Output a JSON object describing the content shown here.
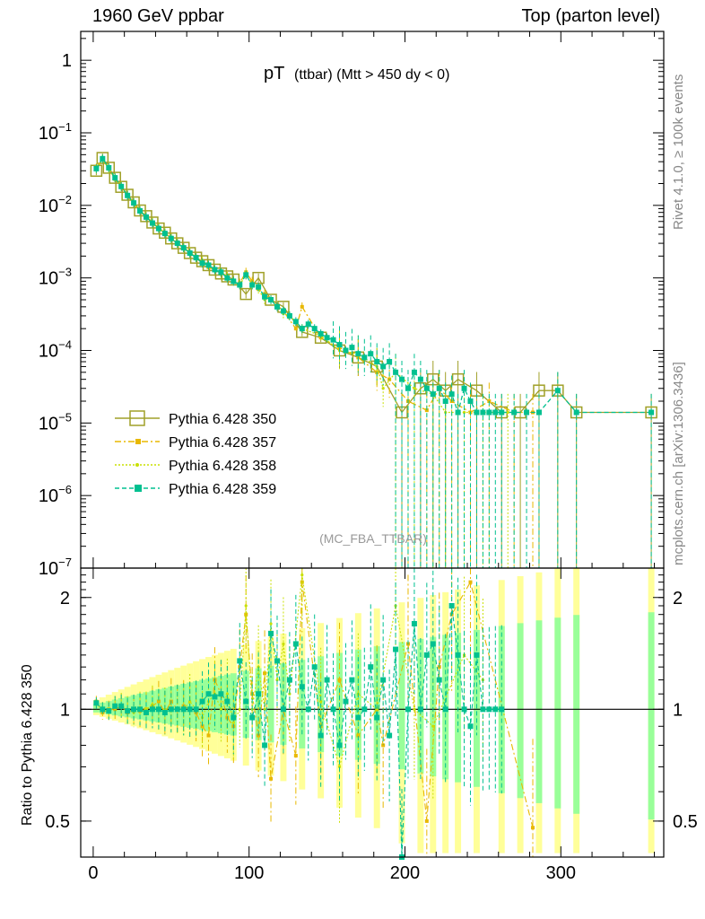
{
  "header": {
    "left": "1960 GeV ppbar",
    "right": "Top (parton level)"
  },
  "side_text": {
    "rivet": "Rivet 4.1.0, ≥ 100k events",
    "mcplots": "mcplots.cern.ch [arXiv:1306.3436]"
  },
  "chart_data": {
    "type": "line",
    "title_main": "pT",
    "title_sub": "(ttbar) (Mtt > 450 dy < 0)",
    "watermark": "(MC_FBA_TTBAR)",
    "xlim": [
      -8,
      366
    ],
    "xticks": [
      0,
      100,
      200,
      300
    ],
    "top_panel": {
      "yscale": "log",
      "ylim": [
        1e-07,
        2.5
      ],
      "yticks": [
        {
          "value": 1,
          "base": "1",
          "exp": ""
        },
        {
          "value": 0.1,
          "base": "10",
          "exp": "−1"
        },
        {
          "value": 0.01,
          "base": "10",
          "exp": "−2"
        },
        {
          "value": 0.001,
          "base": "10",
          "exp": "−3"
        },
        {
          "value": 0.0001,
          "base": "10",
          "exp": "−4"
        },
        {
          "value": 1e-05,
          "base": "10",
          "exp": "−5"
        },
        {
          "value": 1e-06,
          "base": "10",
          "exp": "−6"
        },
        {
          "value": 1e-07,
          "base": "10",
          "exp": "−7"
        }
      ]
    },
    "ratio_panel": {
      "ylabel": "Ratio to Pythia 6.428 350",
      "yscale": "log",
      "ylim": [
        0.4,
        2.4
      ],
      "yticks": [
        {
          "value": 0.5,
          "label": "0.5"
        },
        {
          "value": 1,
          "label": "1"
        },
        {
          "value": 2,
          "label": "2"
        }
      ],
      "band_inner_color": "#99ff99",
      "band_outer_color": "#ffff99"
    },
    "series": [
      {
        "name": "Pythia 6.428 350",
        "color": "#a0a028",
        "style": "solid",
        "marker": "open-square",
        "x": [
          2,
          6,
          10,
          14,
          18,
          22,
          26,
          30,
          34,
          38,
          42,
          46,
          50,
          54,
          58,
          62,
          66,
          70,
          74,
          78,
          82,
          86,
          90,
          98,
          106,
          114,
          122,
          134,
          146,
          158,
          170,
          182,
          198,
          210,
          218,
          226,
          234,
          246,
          262,
          274,
          286,
          298,
          310,
          358
        ],
        "y": [
          0.03,
          0.045,
          0.033,
          0.024,
          0.018,
          0.014,
          0.011,
          0.0085,
          0.0071,
          0.0058,
          0.0048,
          0.0042,
          0.0035,
          0.003,
          0.0026,
          0.0022,
          0.0019,
          0.0017,
          0.0015,
          0.0013,
          0.00115,
          0.00105,
          0.00095,
          0.0006,
          0.001,
          0.0005,
          0.0004,
          0.00018,
          0.00015,
          0.0001,
          8e-05,
          6e-05,
          1.4e-05,
          3e-05,
          4e-05,
          2.8e-05,
          4e-05,
          2.8e-05,
          1.4e-05,
          1.4e-05,
          2.8e-05,
          2.8e-05,
          1.4e-05,
          1.4e-05
        ]
      },
      {
        "name": "Pythia 6.428 357",
        "color": "#e8b800",
        "style": "dashdot",
        "marker": "small-square",
        "x": [
          2,
          6,
          10,
          14,
          18,
          22,
          26,
          30,
          34,
          38,
          42,
          46,
          50,
          54,
          58,
          62,
          66,
          70,
          74,
          78,
          82,
          86,
          90,
          94,
          98,
          102,
          106,
          110,
          114,
          122,
          130,
          134,
          146,
          158,
          170,
          182,
          190,
          202,
          214,
          222,
          230,
          242,
          254,
          270,
          282
        ],
        "y": [
          0.033,
          0.043,
          0.032,
          0.023,
          0.018,
          0.0136,
          0.0107,
          0.0082,
          0.0069,
          0.0058,
          0.0049,
          0.0041,
          0.0036,
          0.0031,
          0.0026,
          0.0022,
          0.0019,
          0.0016,
          0.0014,
          0.0013,
          0.0012,
          0.00105,
          0.0009,
          0.00085,
          0.0012,
          0.0009,
          0.0007,
          0.0006,
          0.0005,
          0.00035,
          0.0002,
          0.0004,
          0.00015,
          0.00011,
          8e-05,
          5e-05,
          4e-05,
          2e-05,
          1.5e-05,
          3e-05,
          2e-05,
          1.4e-05,
          2e-05,
          1.4e-05,
          1.4e-05
        ]
      },
      {
        "name": "Pythia 6.428 358",
        "color": "#c8e000",
        "style": "dotted",
        "marker": "dot",
        "x": [
          2,
          6,
          10,
          14,
          18,
          22,
          26,
          30,
          34,
          38,
          42,
          46,
          50,
          54,
          58,
          62,
          66,
          70,
          74,
          78,
          82,
          86,
          90,
          94,
          98,
          102,
          106,
          110,
          114,
          122,
          126,
          134,
          146,
          158,
          170,
          182,
          186,
          194,
          206,
          218,
          226,
          238,
          250,
          266
        ],
        "y": [
          0.032,
          0.044,
          0.032,
          0.024,
          0.0185,
          0.0138,
          0.0109,
          0.0085,
          0.0071,
          0.0059,
          0.0049,
          0.0042,
          0.0035,
          0.003,
          0.0026,
          0.0023,
          0.0019,
          0.0017,
          0.0015,
          0.0013,
          0.0012,
          0.00105,
          0.0009,
          0.0008,
          0.0011,
          0.0008,
          0.0007,
          0.0005,
          0.0005,
          0.00032,
          0.0003,
          0.0002,
          0.00016,
          0.0001,
          9e-05,
          6e-05,
          3e-05,
          5e-05,
          3e-05,
          2.5e-05,
          1.4e-05,
          1.4e-05,
          1.4e-05,
          1.4e-05
        ]
      },
      {
        "name": "Pythia 6.428 359",
        "color": "#00c090",
        "style": "dashed",
        "marker": "filled-square",
        "x": [
          2,
          6,
          10,
          14,
          18,
          22,
          26,
          30,
          34,
          38,
          42,
          46,
          50,
          54,
          58,
          62,
          66,
          70,
          74,
          78,
          82,
          86,
          90,
          94,
          98,
          102,
          106,
          110,
          114,
          118,
          122,
          126,
          130,
          134,
          138,
          142,
          146,
          150,
          154,
          158,
          162,
          166,
          170,
          174,
          178,
          182,
          186,
          190,
          194,
          198,
          202,
          206,
          210,
          214,
          218,
          222,
          226,
          230,
          234,
          238,
          242,
          246,
          250,
          254,
          258,
          262,
          270,
          278,
          286,
          298,
          310,
          358
        ],
        "y": [
          0.032,
          0.044,
          0.033,
          0.024,
          0.0182,
          0.0137,
          0.0108,
          0.0084,
          0.0069,
          0.0057,
          0.0048,
          0.0041,
          0.0035,
          0.003,
          0.0026,
          0.0022,
          0.0019,
          0.0016,
          0.0015,
          0.0013,
          0.0012,
          0.001,
          0.0009,
          0.0008,
          0.0011,
          0.0008,
          0.00075,
          0.00055,
          0.0005,
          0.0004,
          0.00035,
          0.0003,
          0.00025,
          0.0002,
          0.00023,
          0.0002,
          0.00017,
          0.00015,
          0.00014,
          0.00012,
          0.0001,
          0.00011,
          9e-05,
          8e-05,
          9e-05,
          7e-05,
          6e-05,
          7e-05,
          5e-05,
          4e-05,
          3e-05,
          5e-05,
          4e-05,
          3e-05,
          2.5e-05,
          3e-05,
          2e-05,
          2.5e-05,
          1.4e-05,
          3e-05,
          2e-05,
          1.4e-05,
          1.4e-05,
          1.4e-05,
          1.4e-05,
          1.4e-05,
          1.4e-05,
          1.4e-05,
          1.4e-05,
          2.8e-05,
          1.4e-05,
          1.4e-05
        ]
      }
    ],
    "ratio_series": [
      {
        "name": "Pythia 6.428 357",
        "x": [
          2,
          6,
          10,
          14,
          18,
          22,
          26,
          30,
          34,
          38,
          42,
          46,
          50,
          54,
          58,
          62,
          66,
          70,
          74,
          78,
          82,
          86,
          90,
          94,
          98,
          102,
          106,
          110,
          114,
          122,
          130,
          134,
          146,
          158,
          170,
          182,
          186,
          202,
          214,
          222,
          230,
          242,
          282
        ],
        "y": [
          1.05,
          0.98,
          1.0,
          1.0,
          1.02,
          0.98,
          1.0,
          0.99,
          1.0,
          1.02,
          1.05,
          0.98,
          1.05,
          1.0,
          1.02,
          1.0,
          0.98,
          0.9,
          0.85,
          1.2,
          1.1,
          0.95,
          0.9,
          1.3,
          1.8,
          1.1,
          0.85,
          1.25,
          0.65,
          1.0,
          0.75,
          2.2,
          0.9,
          1.2,
          0.85,
          1.0,
          0.8,
          1.5,
          0.5,
          1.3,
          1.8,
          2.2,
          0.48
        ]
      },
      {
        "name": "Pythia 6.428 358",
        "x": [
          2,
          6,
          10,
          14,
          18,
          22,
          26,
          30,
          34,
          38,
          42,
          46,
          50,
          54,
          58,
          62,
          66,
          70,
          74,
          78,
          82,
          86,
          90,
          94,
          98,
          102,
          106,
          110,
          114,
          118,
          122,
          126,
          134,
          146,
          158,
          170,
          182,
          194,
          206,
          218,
          238,
          250
        ],
        "y": [
          1.03,
          1.0,
          0.98,
          1.02,
          1.03,
          1.0,
          0.98,
          1.01,
          1.0,
          1.03,
          1.0,
          1.0,
          1.0,
          1.0,
          1.0,
          1.05,
          1.0,
          0.95,
          1.05,
          1.1,
          1.0,
          1.1,
          0.92,
          1.0,
          1.9,
          1.0,
          1.3,
          1.0,
          1.7,
          1.2,
          1.5,
          1.1,
          2.3,
          1.05,
          0.7,
          1.1,
          1.0,
          1.9,
          1.0,
          0.9,
          1.4,
          1.2
        ]
      },
      {
        "name": "Pythia 6.428 359",
        "x": [
          2,
          6,
          10,
          14,
          18,
          22,
          26,
          30,
          34,
          38,
          42,
          46,
          50,
          54,
          58,
          62,
          66,
          70,
          74,
          78,
          82,
          86,
          90,
          94,
          98,
          102,
          106,
          110,
          114,
          118,
          122,
          126,
          130,
          134,
          138,
          142,
          146,
          150,
          154,
          158,
          162,
          166,
          170,
          174,
          178,
          182,
          186,
          190,
          194,
          198,
          202,
          206,
          210,
          214,
          218,
          222,
          226,
          230,
          234,
          238,
          242,
          246,
          250,
          254,
          258,
          262
        ],
        "y": [
          1.04,
          1.0,
          0.99,
          1.02,
          1.02,
          0.99,
          1.0,
          1.0,
          0.98,
          1.0,
          1.0,
          0.98,
          1.0,
          1.0,
          1.0,
          1.0,
          1.0,
          1.05,
          1.1,
          1.08,
          1.1,
          1.05,
          0.95,
          1.35,
          1.05,
          0.95,
          1.1,
          0.8,
          1.6,
          1.35,
          1.0,
          1.2,
          1.5,
          1.15,
          1.0,
          1.3,
          0.85,
          1.2,
          1.0,
          0.8,
          1.05,
          1.2,
          0.95,
          1.0,
          1.3,
          0.95,
          1.2,
          0.85,
          1.45,
          0.38,
          1.0,
          1.7,
          1.0,
          1.4,
          1.5,
          1.2,
          1.0,
          1.9,
          1.4,
          1.0,
          0.9,
          1.4,
          1.0,
          1.0,
          1.0,
          1.0
        ]
      }
    ]
  }
}
